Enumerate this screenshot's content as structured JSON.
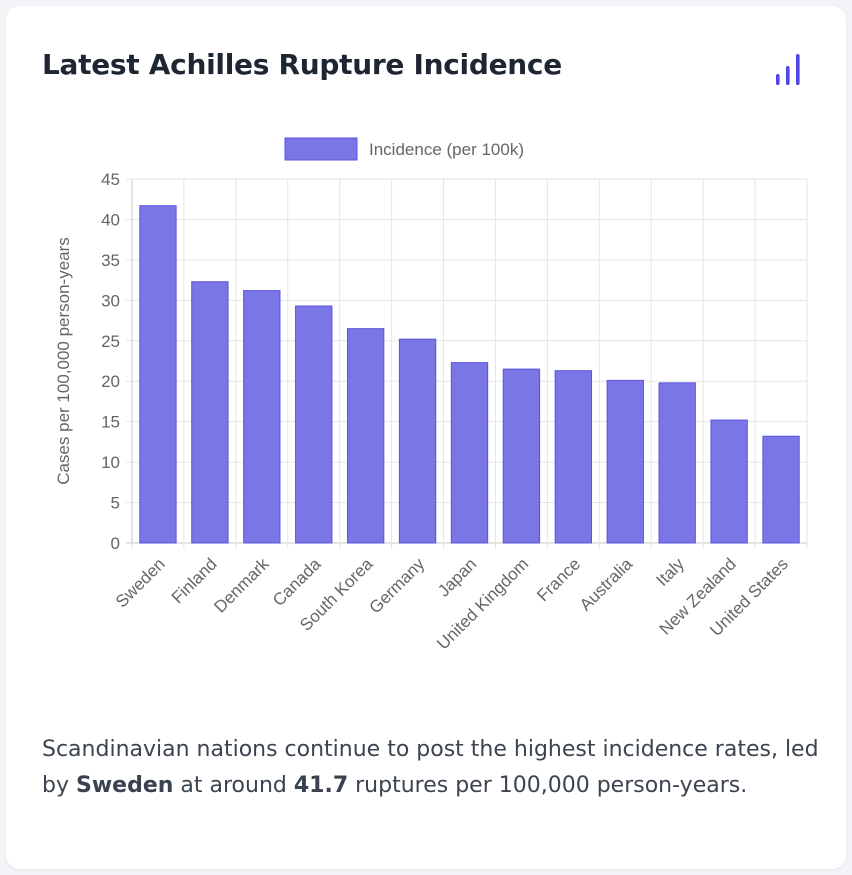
{
  "card": {
    "title": "Latest Achilles Rupture Incidence",
    "icon": "bar-chart-icon",
    "accent_color": "#4f46e5"
  },
  "chart_data": {
    "type": "bar",
    "title": "",
    "xlabel": "",
    "ylabel": "Cases per 100,000 person-years",
    "ylim": [
      0,
      45
    ],
    "yticks": [
      0,
      5,
      10,
      15,
      20,
      25,
      30,
      35,
      40,
      45
    ],
    "grid": true,
    "legend_position": "top",
    "bar_color": "#7b76e6",
    "bar_border_color": "#5b53e0",
    "categories": [
      "Sweden",
      "Finland",
      "Denmark",
      "Canada",
      "South Korea",
      "Germany",
      "Japan",
      "United Kingdom",
      "France",
      "Australia",
      "Italy",
      "New Zealand",
      "United States"
    ],
    "series": [
      {
        "name": "Incidence (per 100k)",
        "values": [
          41.7,
          32.3,
          31.2,
          29.3,
          26.5,
          25.2,
          22.3,
          21.5,
          21.3,
          20.1,
          19.8,
          15.2,
          13.2
        ]
      }
    ]
  },
  "description": {
    "before": "Scandinavian nations continue to post the highest incidence rates, led by ",
    "country": "Sweden",
    "middle": " at around ",
    "value": "41.7",
    "after": " ruptures per 100,000 person-years."
  }
}
